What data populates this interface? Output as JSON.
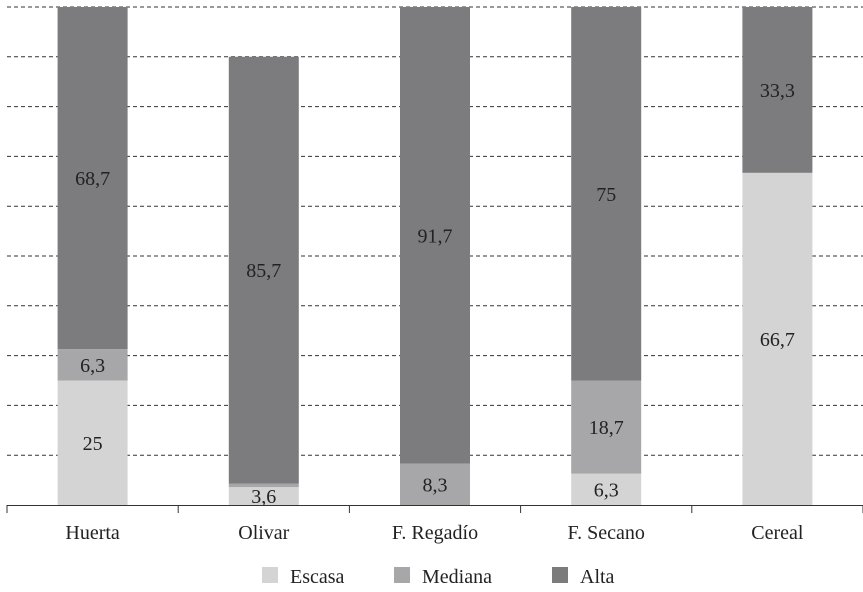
{
  "chart_data": {
    "type": "bar",
    "stacked": true,
    "categories": [
      "Huerta",
      "Olivar",
      "F. Regadío",
      "F. Secano",
      "Cereal"
    ],
    "series": [
      {
        "name": "Escasa",
        "values": [
          25,
          3.6,
          0,
          6.3,
          66.7
        ],
        "labels": [
          "25",
          "3,6",
          "",
          "6,3",
          "66,7"
        ],
        "color": "#d4d4d4"
      },
      {
        "name": "Mediana",
        "values": [
          6.3,
          0.7,
          8.3,
          18.7,
          0
        ],
        "labels": [
          "6,3",
          "",
          "8,3",
          "18,7",
          ""
        ],
        "color": "#a7a7a9"
      },
      {
        "name": "Alta",
        "values": [
          68.7,
          85.7,
          91.7,
          75,
          33.3
        ],
        "labels": [
          "68,7",
          "85,7",
          "91,7",
          "75",
          "33,3"
        ],
        "color": "#7c7c7e"
      }
    ],
    "ylim": [
      0,
      100
    ],
    "grid": true,
    "legend_position": "bottom"
  }
}
